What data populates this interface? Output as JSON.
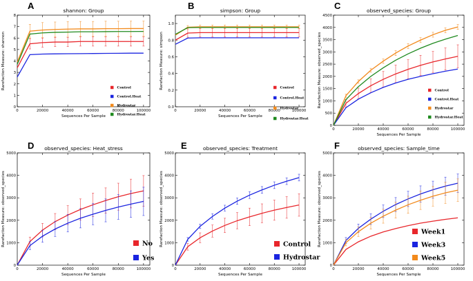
{
  "figure": {
    "legend_sizes": [
      "small",
      "small",
      "small",
      "large",
      "large",
      "large"
    ]
  },
  "chart_data": [
    {
      "type": "line",
      "letter": "A",
      "title": "shannon: Group",
      "xlabel": "Sequences Per Sample",
      "ylabel": "Rarefaction Measure: shannon",
      "xlim": [
        0,
        105000
      ],
      "ylim": [
        0,
        8
      ],
      "x_ticks": [
        0,
        20000,
        40000,
        60000,
        80000,
        100000
      ],
      "y_ticks": [
        0,
        1,
        2,
        3,
        4,
        5,
        6,
        7,
        8
      ],
      "x_tick_labels": [
        "0",
        "20000",
        "40000",
        "60000",
        "80000",
        "100000"
      ],
      "y_tick_labels": [
        "0",
        "1",
        "2",
        "3",
        "4",
        "5",
        "6",
        "7",
        "8"
      ],
      "x": [
        1,
        10000,
        20000,
        30000,
        40000,
        50000,
        60000,
        70000,
        80000,
        90000,
        100000
      ],
      "legend_position": "right",
      "series": [
        {
          "name": "Control",
          "color": "#e8262b",
          "values": [
            3.4,
            5.5,
            5.6,
            5.65,
            5.65,
            5.7,
            5.7,
            5.7,
            5.7,
            5.7,
            5.7
          ],
          "errors": [
            0,
            0.45,
            0.4,
            0.4,
            0.4,
            0.4,
            0.4,
            0.4,
            0.4,
            0.4,
            0.4
          ]
        },
        {
          "name": "Control.Heat",
          "color": "#1a24e0",
          "values": [
            2.6,
            4.55,
            4.6,
            4.62,
            4.63,
            4.64,
            4.65,
            4.66,
            4.67,
            4.68,
            4.68
          ],
          "errors": [
            0,
            0,
            0,
            0,
            0,
            0,
            0,
            0,
            0,
            0,
            0
          ]
        },
        {
          "name": "Hydrostar",
          "color": "#f28a1c",
          "values": [
            3.9,
            6.6,
            6.7,
            6.75,
            6.78,
            6.8,
            6.8,
            6.82,
            6.82,
            6.83,
            6.83
          ],
          "errors": [
            0,
            0.6,
            0.65,
            0.65,
            0.65,
            0.65,
            0.65,
            0.65,
            0.65,
            0.65,
            0.65
          ]
        },
        {
          "name": "Hydrostar.Heat",
          "color": "#1f8a1f",
          "values": [
            3.7,
            6.35,
            6.45,
            6.5,
            6.52,
            6.55,
            6.55,
            6.56,
            6.57,
            6.57,
            6.58
          ],
          "errors": [
            0,
            0,
            0,
            0,
            0,
            0,
            0,
            0,
            0,
            0,
            0
          ]
        }
      ]
    },
    {
      "type": "line",
      "letter": "B",
      "title": "simpson: Group",
      "xlabel": "Sequences Per Sample",
      "ylabel": "Rarefaction Measure: simpson",
      "xlim": [
        0,
        105000
      ],
      "ylim": [
        0,
        1.1
      ],
      "x_ticks": [
        0,
        20000,
        40000,
        60000,
        80000,
        100000
      ],
      "y_ticks": [
        0,
        0.2,
        0.4,
        0.6,
        0.8,
        1.0
      ],
      "x_tick_labels": [
        "0",
        "20000",
        "40000",
        "60000",
        "80000",
        "100000"
      ],
      "y_tick_labels": [
        "0.0",
        "0.2",
        "0.4",
        "0.6",
        "0.8",
        "1.0"
      ],
      "x": [
        1,
        10000,
        20000,
        30000,
        40000,
        50000,
        60000,
        70000,
        80000,
        90000,
        100000
      ],
      "legend_position": "right",
      "series": [
        {
          "name": "Control",
          "color": "#e8262b",
          "values": [
            0.8,
            0.885,
            0.89,
            0.89,
            0.89,
            0.89,
            0.89,
            0.89,
            0.89,
            0.89,
            0.89
          ],
          "errors": [
            0,
            0.05,
            0.05,
            0.05,
            0.05,
            0.05,
            0.05,
            0.05,
            0.05,
            0.05,
            0.05
          ]
        },
        {
          "name": "Control.Heat",
          "color": "#1a24e0",
          "values": [
            0.75,
            0.825,
            0.828,
            0.828,
            0.828,
            0.828,
            0.828,
            0.828,
            0.828,
            0.828,
            0.828
          ],
          "errors": [
            0,
            0,
            0,
            0,
            0,
            0,
            0,
            0,
            0,
            0,
            0
          ]
        },
        {
          "name": "Hydrostar",
          "color": "#f28a1c",
          "values": [
            0.86,
            0.955,
            0.96,
            0.96,
            0.96,
            0.96,
            0.96,
            0.96,
            0.96,
            0.96,
            0.96
          ],
          "errors": [
            0,
            0.02,
            0.02,
            0.02,
            0.02,
            0.02,
            0.02,
            0.02,
            0.02,
            0.02,
            0.02
          ]
        },
        {
          "name": "Hydrostar.Heat",
          "color": "#1f8a1f",
          "values": [
            0.87,
            0.95,
            0.952,
            0.952,
            0.952,
            0.952,
            0.952,
            0.952,
            0.952,
            0.952,
            0.952
          ],
          "errors": [
            0,
            0,
            0,
            0,
            0,
            0,
            0,
            0,
            0,
            0,
            0
          ]
        }
      ]
    },
    {
      "type": "line",
      "letter": "C",
      "title": "observed_species: Group",
      "xlabel": "Sequences Per Sample",
      "ylabel": "Rarefaction Measure: observed_species",
      "xlim": [
        0,
        105000
      ],
      "ylim": [
        0,
        4500
      ],
      "x_ticks": [
        0,
        20000,
        40000,
        60000,
        80000,
        100000
      ],
      "y_ticks": [
        0,
        500,
        1000,
        1500,
        2000,
        2500,
        3000,
        3500,
        4000,
        4500
      ],
      "x_tick_labels": [
        "0",
        "20000",
        "40000",
        "60000",
        "80000",
        "100000"
      ],
      "y_tick_labels": [
        "0",
        "500",
        "1000",
        "1500",
        "2000",
        "2500",
        "3000",
        "3500",
        "4000",
        "4500"
      ],
      "x": [
        1,
        10000,
        20000,
        30000,
        40000,
        50000,
        60000,
        70000,
        80000,
        90000,
        100000
      ],
      "legend_position": "right",
      "series": [
        {
          "name": "Control",
          "color": "#e8262b",
          "values": [
            5,
            900,
            1300,
            1620,
            1880,
            2100,
            2290,
            2450,
            2590,
            2710,
            2820
          ],
          "errors": [
            0,
            150,
            220,
            280,
            320,
            360,
            390,
            410,
            430,
            450,
            470
          ]
        },
        {
          "name": "Control.Heat",
          "color": "#1a24e0",
          "values": [
            5,
            720,
            1070,
            1330,
            1550,
            1730,
            1880,
            2000,
            2110,
            2210,
            2300
          ],
          "errors": [
            0,
            0,
            0,
            0,
            0,
            0,
            0,
            0,
            0,
            0,
            0
          ]
        },
        {
          "name": "Hydrostar",
          "color": "#f28a1c",
          "values": [
            5,
            1210,
            1790,
            2250,
            2620,
            2950,
            3240,
            3480,
            3700,
            3880,
            4020
          ],
          "errors": [
            0,
            60,
            70,
            80,
            90,
            100,
            100,
            100,
            100,
            100,
            100
          ]
        },
        {
          "name": "Hydrostar.Heat",
          "color": "#1f8a1f",
          "values": [
            5,
            1050,
            1580,
            2000,
            2350,
            2660,
            2920,
            3150,
            3350,
            3520,
            3670
          ],
          "errors": [
            0,
            0,
            0,
            0,
            0,
            0,
            0,
            0,
            0,
            0,
            0
          ]
        }
      ]
    },
    {
      "type": "line",
      "letter": "D",
      "title": "observed_species: Heat_stress",
      "xlabel": "Sequences Per Sample",
      "ylabel": "Rarefaction Measure: observed_species",
      "xlim": [
        0,
        105000
      ],
      "ylim": [
        0,
        5000
      ],
      "x_ticks": [
        0,
        20000,
        40000,
        60000,
        80000,
        100000
      ],
      "y_ticks": [
        0,
        1000,
        2000,
        3000,
        4000,
        5000
      ],
      "x_tick_labels": [
        "0",
        "20000",
        "40000",
        "60000",
        "80000",
        "100000"
      ],
      "y_tick_labels": [
        "0",
        "1000",
        "2000",
        "3000",
        "4000",
        "5000"
      ],
      "x": [
        1,
        10000,
        20000,
        30000,
        40000,
        50000,
        60000,
        70000,
        80000,
        90000,
        100000
      ],
      "legend_position": "right",
      "series": [
        {
          "name": "No",
          "color": "#e8262b",
          "values": [
            5,
            1050,
            1560,
            1940,
            2230,
            2480,
            2690,
            2880,
            3050,
            3190,
            3310
          ],
          "errors": [
            0,
            200,
            300,
            360,
            420,
            470,
            520,
            560,
            600,
            640,
            680
          ]
        },
        {
          "name": "Yes",
          "color": "#1a24e0",
          "values": [
            5,
            870,
            1290,
            1610,
            1870,
            2090,
            2270,
            2440,
            2590,
            2720,
            2840
          ],
          "errors": [
            0,
            180,
            270,
            330,
            390,
            430,
            470,
            510,
            550,
            590,
            630
          ]
        }
      ]
    },
    {
      "type": "line",
      "letter": "E",
      "title": "observed_species: Treatment",
      "xlabel": "Sequences Per Sample",
      "ylabel": "Rarefaction Measure: observed_species",
      "xlim": [
        0,
        105000
      ],
      "ylim": [
        0,
        5000
      ],
      "x_ticks": [
        0,
        20000,
        40000,
        60000,
        80000,
        100000
      ],
      "y_ticks": [
        0,
        1000,
        2000,
        3000,
        4000,
        5000
      ],
      "x_tick_labels": [
        "0",
        "20000",
        "40000",
        "60000",
        "80000",
        "100000"
      ],
      "y_tick_labels": [
        "0",
        "1000",
        "2000",
        "3000",
        "4000",
        "5000"
      ],
      "x": [
        1,
        10000,
        20000,
        30000,
        40000,
        50000,
        60000,
        70000,
        80000,
        90000,
        100000
      ],
      "legend_position": "right",
      "series": [
        {
          "name": "Control",
          "color": "#e8262b",
          "values": [
            5,
            820,
            1220,
            1520,
            1770,
            1980,
            2150,
            2310,
            2450,
            2570,
            2680
          ],
          "errors": [
            0,
            150,
            220,
            270,
            320,
            360,
            390,
            420,
            450,
            480,
            500
          ]
        },
        {
          "name": "Hydrostar",
          "color": "#1a24e0",
          "values": [
            5,
            1150,
            1730,
            2170,
            2540,
            2850,
            3120,
            3350,
            3560,
            3740,
            3900
          ],
          "errors": [
            0,
            80,
            100,
            120,
            130,
            140,
            150,
            150,
            150,
            150,
            150
          ]
        }
      ]
    },
    {
      "type": "line",
      "letter": "F",
      "title": "observed_species: Sample_time",
      "xlabel": "Sequences Per Sample",
      "ylabel": "Rarefaction Measure: observed_species",
      "xlim": [
        0,
        105000
      ],
      "ylim": [
        0,
        5000
      ],
      "x_ticks": [
        0,
        20000,
        40000,
        60000,
        80000,
        100000
      ],
      "y_ticks": [
        0,
        1000,
        2000,
        3000,
        4000,
        5000
      ],
      "x_tick_labels": [
        "0",
        "20000",
        "40000",
        "60000",
        "80000",
        "100000"
      ],
      "y_tick_labels": [
        "0",
        "1000",
        "2000",
        "3000",
        "4000",
        "5000"
      ],
      "x": [
        1,
        10000,
        20000,
        30000,
        40000,
        50000,
        60000,
        70000,
        80000,
        90000,
        100000
      ],
      "legend_position": "right",
      "series": [
        {
          "name": "Week1",
          "color": "#e8262b",
          "values": [
            5,
            700,
            1040,
            1290,
            1480,
            1630,
            1760,
            1870,
            1960,
            2040,
            2110
          ],
          "errors": [
            0,
            0,
            0,
            0,
            0,
            0,
            0,
            0,
            0,
            0,
            0
          ]
        },
        {
          "name": "Week3",
          "color": "#1a24e0",
          "values": [
            5,
            1100,
            1640,
            2050,
            2400,
            2700,
            2950,
            3170,
            3360,
            3520,
            3650
          ],
          "errors": [
            0,
            130,
            190,
            240,
            280,
            310,
            340,
            360,
            380,
            400,
            410
          ]
        },
        {
          "name": "Week5",
          "color": "#f28a1c",
          "values": [
            5,
            1000,
            1490,
            1870,
            2180,
            2450,
            2690,
            2890,
            3070,
            3220,
            3340
          ],
          "errors": [
            0,
            140,
            210,
            260,
            310,
            350,
            380,
            410,
            440,
            470,
            500
          ]
        }
      ]
    }
  ]
}
